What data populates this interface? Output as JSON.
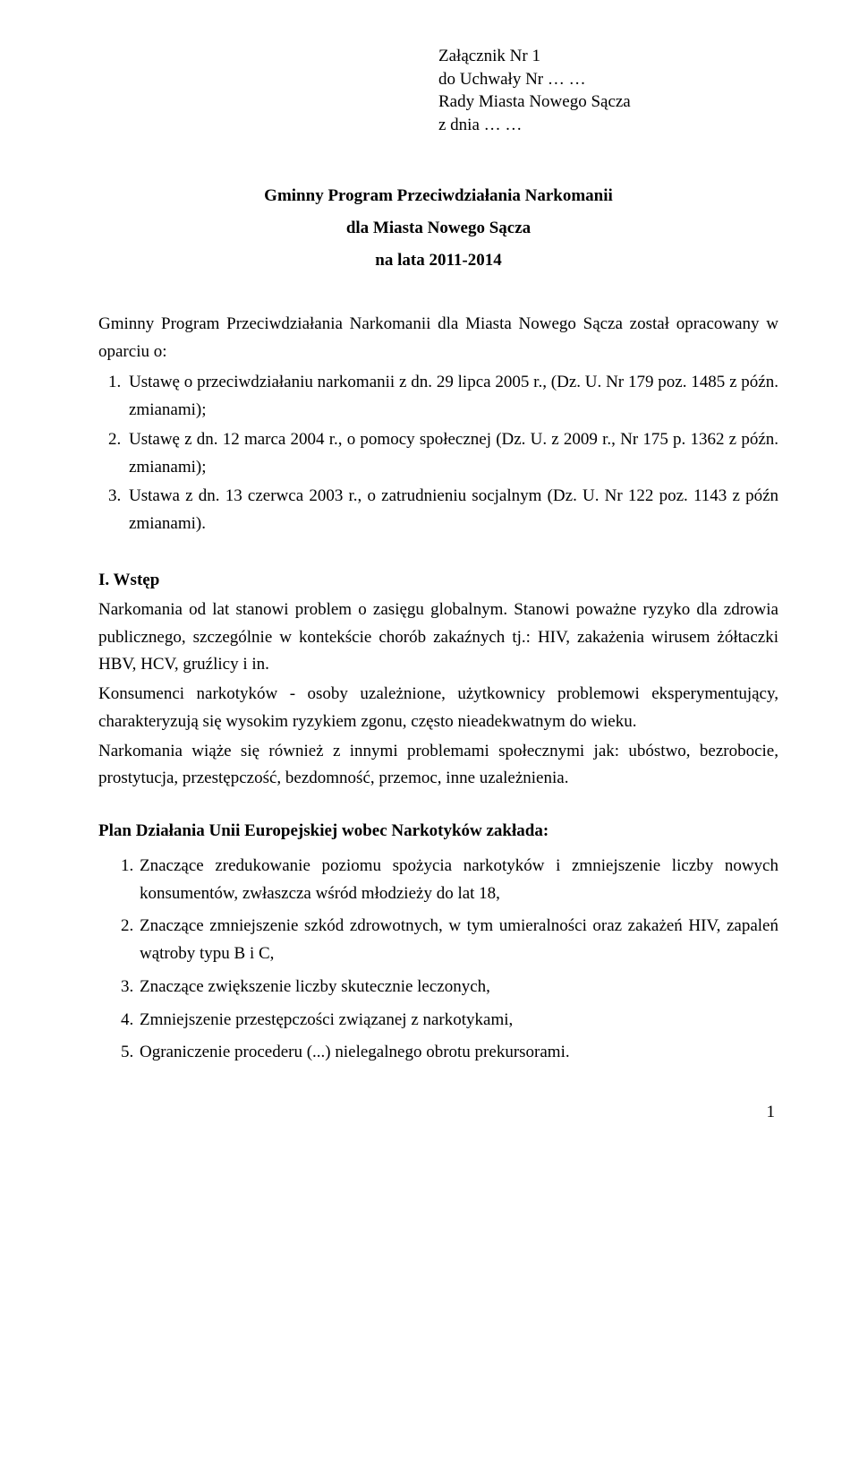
{
  "attachment": {
    "l1": "Załącznik Nr 1",
    "l2": "do Uchwały Nr … …",
    "l3": "Rady Miasta Nowego Sącza",
    "l4": "z dnia … …"
  },
  "title": {
    "l1": "Gminny Program Przeciwdziałania Narkomanii",
    "l2": "dla Miasta Nowego Sącza",
    "l3": "na lata 2011-2014"
  },
  "intro": "Gminny Program Przeciwdziałania Narkomanii dla Miasta Nowego Sącza został opracowany w oparciu o:",
  "laws": [
    "Ustawę o przeciwdziałaniu narkomanii z dn. 29 lipca 2005 r., (Dz. U. Nr 179 poz. 1485 z późn. zmianami);",
    "Ustawę z dn. 12 marca 2004 r., o pomocy społecznej (Dz. U. z 2009 r., Nr 175 p. 1362 z późn. zmianami);",
    "Ustawa z dn. 13 czerwca 2003 r., o zatrudnieniu socjalnym (Dz. U. Nr 122 poz. 1143 z późn zmianami)."
  ],
  "section1": {
    "head": "I. Wstęp",
    "p1": "Narkomania od lat stanowi problem o zasięgu globalnym. Stanowi poważne ryzyko dla zdrowia publicznego, szczególnie w kontekście chorób zakaźnych tj.: HIV, zakażenia wirusem żółtaczki HBV, HCV, gruźlicy  i in.",
    "p2": "Konsumenci narkotyków - osoby uzależnione, użytkownicy problemowi eksperymentujący, charakteryzują się wysokim ryzykiem zgonu, często nieadekwatnym do wieku.",
    "p3": "Narkomania wiąże się również z innymi problemami społecznymi jak: ubóstwo, bezrobocie, prostytucja, przestępczość, bezdomność, przemoc, inne uzależnienia."
  },
  "plan": {
    "head": "Plan Działania Unii Europejskiej wobec Narkotyków zakłada:",
    "items": [
      "Znaczące zredukowanie poziomu spożycia narkotyków i zmniejszenie liczby nowych konsumentów, zwłaszcza wśród młodzieży do lat 18,",
      "Znaczące zmniejszenie szkód zdrowotnych, w tym umieralności oraz zakażeń HIV, zapaleń wątroby typu B i C,",
      "Znaczące zwiększenie liczby skutecznie leczonych,",
      "Zmniejszenie  przestępczości związanej z narkotykami,",
      "Ograniczenie procederu (...) nielegalnego obrotu prekursorami."
    ]
  },
  "pagenum": "1"
}
